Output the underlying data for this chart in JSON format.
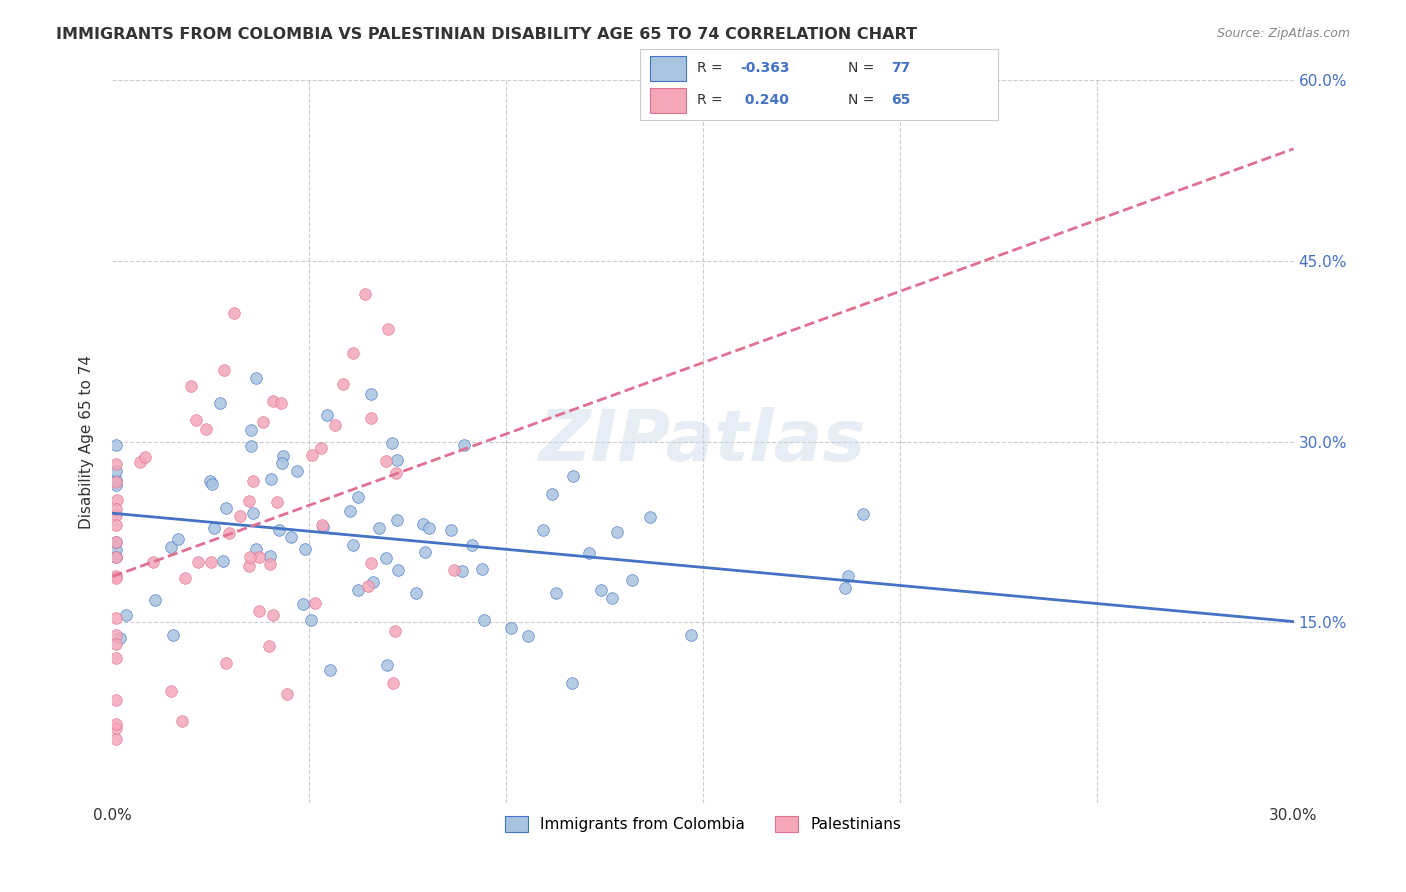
{
  "title": "IMMIGRANTS FROM COLOMBIA VS PALESTINIAN DISABILITY AGE 65 TO 74 CORRELATION CHART",
  "source": "Source: ZipAtlas.com",
  "ylabel_label": "Disability Age 65 to 74",
  "legend_labels": [
    "Immigrants from Colombia",
    "Palestinians"
  ],
  "colombia_R": -0.363,
  "colombia_N": 77,
  "palestine_R": 0.24,
  "palestine_N": 65,
  "colombia_color": "#a8c4e0",
  "colombia_line_color": "#4472c4",
  "palestine_color": "#f4a7b9",
  "palestine_line_color": "#e07090",
  "watermark": "ZIPatlas",
  "xlim": [
    0.0,
    0.3
  ],
  "ylim": [
    0.0,
    0.6
  ]
}
